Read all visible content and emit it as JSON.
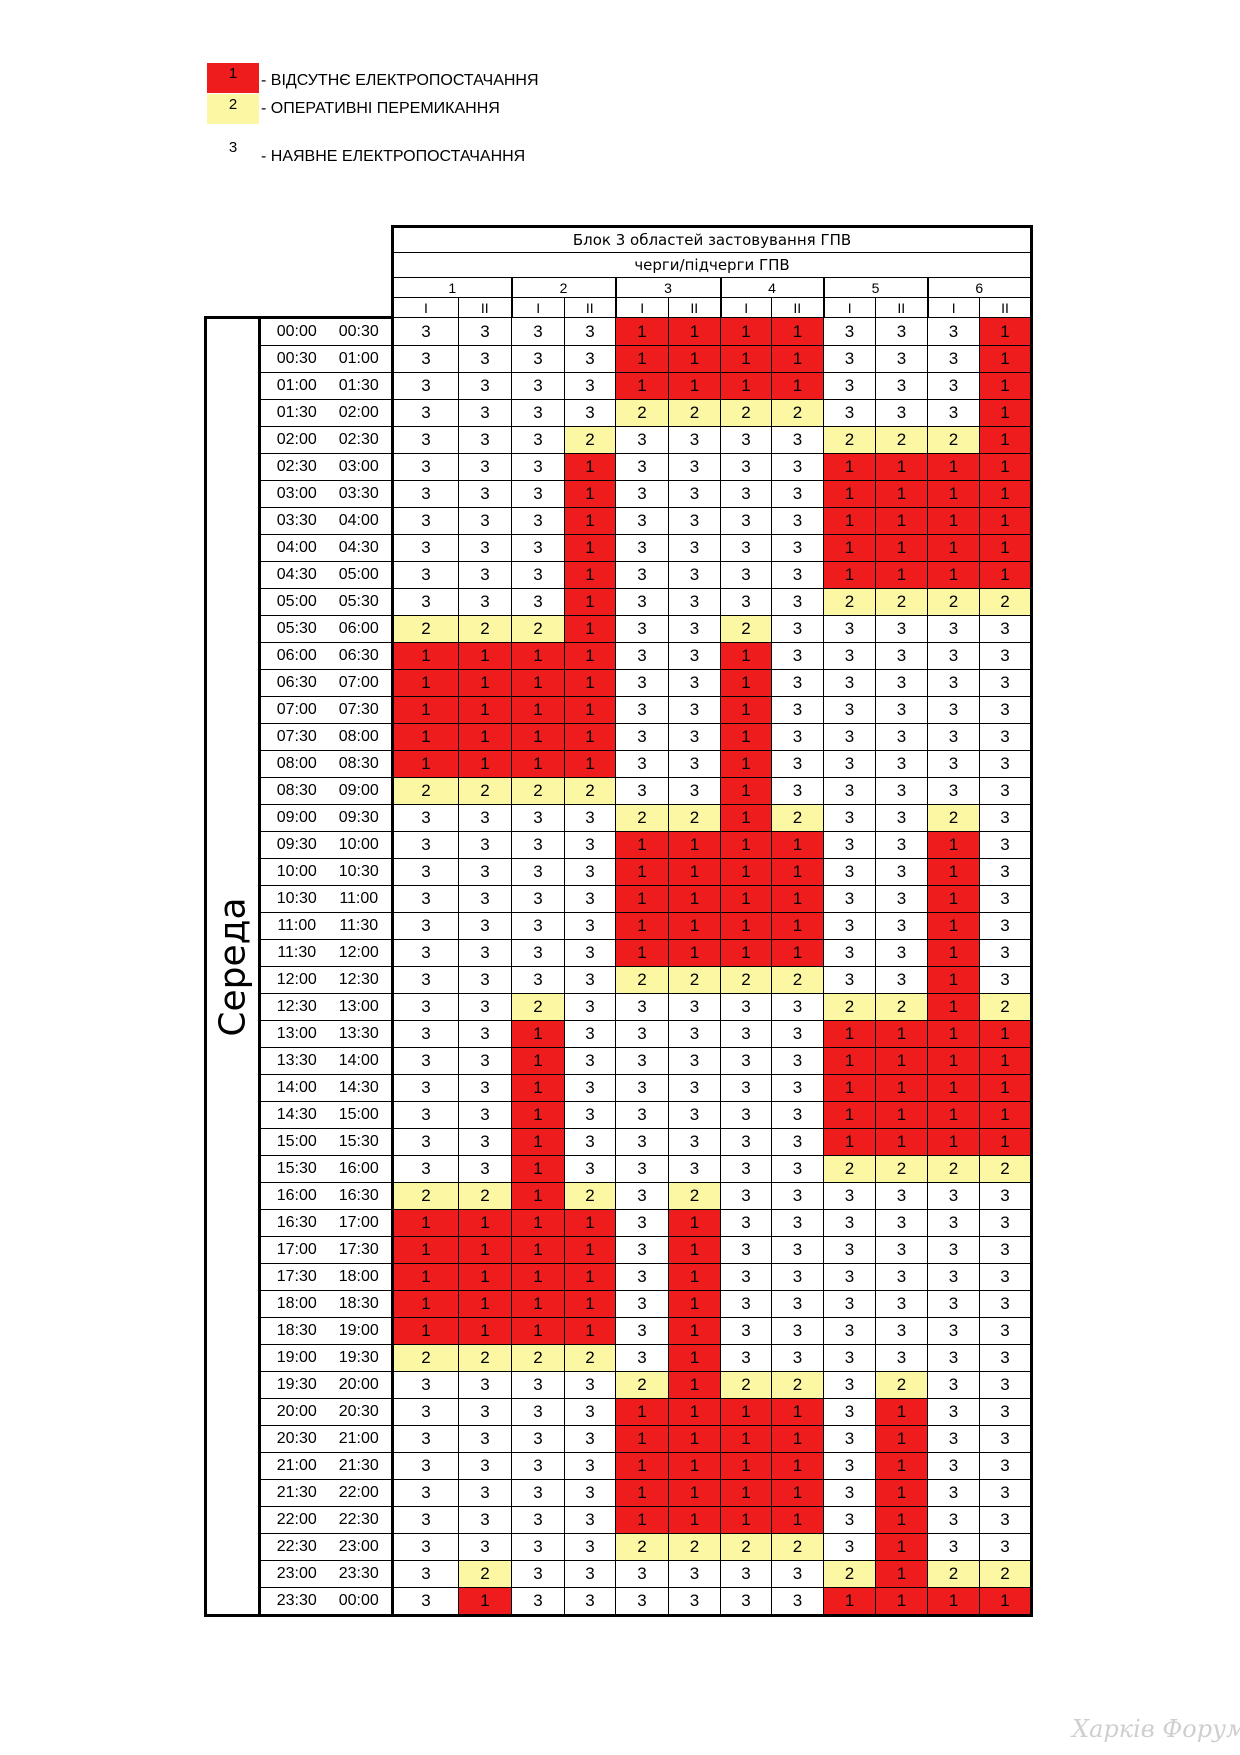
{
  "legend": [
    {
      "code": "1",
      "text": "- ВІДСУТНЄ ЕЛЕКТРОПОСТАЧАННЯ",
      "color": "#ee1c1c"
    },
    {
      "code": "2",
      "text": "- ОПЕРАТИВНІ ПЕРЕМИКАННЯ",
      "color": "#fbf7a2"
    },
    {
      "code": "3",
      "text": "- НАЯВНЕ ЕЛЕКТРОПОСТАЧАННЯ",
      "color": "#ffffff"
    }
  ],
  "table": {
    "title": "Блок 3 областей застовування ГПВ",
    "subtitle": "черги/підчерги ГПВ",
    "queues": [
      "1",
      "2",
      "3",
      "4",
      "5",
      "6"
    ],
    "subqueues": [
      "I",
      "II"
    ],
    "day": "Середа",
    "rows": [
      {
        "start": "00:00",
        "end": "00:30",
        "values": [
          "3",
          "3",
          "3",
          "3",
          "1",
          "1",
          "1",
          "1",
          "3",
          "3",
          "3",
          "1"
        ]
      },
      {
        "start": "00:30",
        "end": "01:00",
        "values": [
          "3",
          "3",
          "3",
          "3",
          "1",
          "1",
          "1",
          "1",
          "3",
          "3",
          "3",
          "1"
        ]
      },
      {
        "start": "01:00",
        "end": "01:30",
        "values": [
          "3",
          "3",
          "3",
          "3",
          "1",
          "1",
          "1",
          "1",
          "3",
          "3",
          "3",
          "1"
        ]
      },
      {
        "start": "01:30",
        "end": "02:00",
        "values": [
          "3",
          "3",
          "3",
          "3",
          "2",
          "2",
          "2",
          "2",
          "3",
          "3",
          "3",
          "1"
        ]
      },
      {
        "start": "02:00",
        "end": "02:30",
        "values": [
          "3",
          "3",
          "3",
          "2",
          "3",
          "3",
          "3",
          "3",
          "2",
          "2",
          "2",
          "1"
        ]
      },
      {
        "start": "02:30",
        "end": "03:00",
        "values": [
          "3",
          "3",
          "3",
          "1",
          "3",
          "3",
          "3",
          "3",
          "1",
          "1",
          "1",
          "1"
        ]
      },
      {
        "start": "03:00",
        "end": "03:30",
        "values": [
          "3",
          "3",
          "3",
          "1",
          "3",
          "3",
          "3",
          "3",
          "1",
          "1",
          "1",
          "1"
        ]
      },
      {
        "start": "03:30",
        "end": "04:00",
        "values": [
          "3",
          "3",
          "3",
          "1",
          "3",
          "3",
          "3",
          "3",
          "1",
          "1",
          "1",
          "1"
        ]
      },
      {
        "start": "04:00",
        "end": "04:30",
        "values": [
          "3",
          "3",
          "3",
          "1",
          "3",
          "3",
          "3",
          "3",
          "1",
          "1",
          "1",
          "1"
        ]
      },
      {
        "start": "04:30",
        "end": "05:00",
        "values": [
          "3",
          "3",
          "3",
          "1",
          "3",
          "3",
          "3",
          "3",
          "1",
          "1",
          "1",
          "1"
        ]
      },
      {
        "start": "05:00",
        "end": "05:30",
        "values": [
          "3",
          "3",
          "3",
          "1",
          "3",
          "3",
          "3",
          "3",
          "2",
          "2",
          "2",
          "2"
        ]
      },
      {
        "start": "05:30",
        "end": "06:00",
        "values": [
          "2",
          "2",
          "2",
          "1",
          "3",
          "3",
          "2",
          "3",
          "3",
          "3",
          "3",
          "3"
        ]
      },
      {
        "start": "06:00",
        "end": "06:30",
        "values": [
          "1",
          "1",
          "1",
          "1",
          "3",
          "3",
          "1",
          "3",
          "3",
          "3",
          "3",
          "3"
        ]
      },
      {
        "start": "06:30",
        "end": "07:00",
        "values": [
          "1",
          "1",
          "1",
          "1",
          "3",
          "3",
          "1",
          "3",
          "3",
          "3",
          "3",
          "3"
        ]
      },
      {
        "start": "07:00",
        "end": "07:30",
        "values": [
          "1",
          "1",
          "1",
          "1",
          "3",
          "3",
          "1",
          "3",
          "3",
          "3",
          "3",
          "3"
        ]
      },
      {
        "start": "07:30",
        "end": "08:00",
        "values": [
          "1",
          "1",
          "1",
          "1",
          "3",
          "3",
          "1",
          "3",
          "3",
          "3",
          "3",
          "3"
        ]
      },
      {
        "start": "08:00",
        "end": "08:30",
        "values": [
          "1",
          "1",
          "1",
          "1",
          "3",
          "3",
          "1",
          "3",
          "3",
          "3",
          "3",
          "3"
        ]
      },
      {
        "start": "08:30",
        "end": "09:00",
        "values": [
          "2",
          "2",
          "2",
          "2",
          "3",
          "3",
          "1",
          "3",
          "3",
          "3",
          "3",
          "3"
        ]
      },
      {
        "start": "09:00",
        "end": "09:30",
        "values": [
          "3",
          "3",
          "3",
          "3",
          "2",
          "2",
          "1",
          "2",
          "3",
          "3",
          "2",
          "3"
        ]
      },
      {
        "start": "09:30",
        "end": "10:00",
        "values": [
          "3",
          "3",
          "3",
          "3",
          "1",
          "1",
          "1",
          "1",
          "3",
          "3",
          "1",
          "3"
        ]
      },
      {
        "start": "10:00",
        "end": "10:30",
        "values": [
          "3",
          "3",
          "3",
          "3",
          "1",
          "1",
          "1",
          "1",
          "3",
          "3",
          "1",
          "3"
        ]
      },
      {
        "start": "10:30",
        "end": "11:00",
        "values": [
          "3",
          "3",
          "3",
          "3",
          "1",
          "1",
          "1",
          "1",
          "3",
          "3",
          "1",
          "3"
        ]
      },
      {
        "start": "11:00",
        "end": "11:30",
        "values": [
          "3",
          "3",
          "3",
          "3",
          "1",
          "1",
          "1",
          "1",
          "3",
          "3",
          "1",
          "3"
        ]
      },
      {
        "start": "11:30",
        "end": "12:00",
        "values": [
          "3",
          "3",
          "3",
          "3",
          "1",
          "1",
          "1",
          "1",
          "3",
          "3",
          "1",
          "3"
        ]
      },
      {
        "start": "12:00",
        "end": "12:30",
        "values": [
          "3",
          "3",
          "3",
          "3",
          "2",
          "2",
          "2",
          "2",
          "3",
          "3",
          "1",
          "3"
        ]
      },
      {
        "start": "12:30",
        "end": "13:00",
        "values": [
          "3",
          "3",
          "2",
          "3",
          "3",
          "3",
          "3",
          "3",
          "2",
          "2",
          "1",
          "2"
        ]
      },
      {
        "start": "13:00",
        "end": "13:30",
        "values": [
          "3",
          "3",
          "1",
          "3",
          "3",
          "3",
          "3",
          "3",
          "1",
          "1",
          "1",
          "1"
        ]
      },
      {
        "start": "13:30",
        "end": "14:00",
        "values": [
          "3",
          "3",
          "1",
          "3",
          "3",
          "3",
          "3",
          "3",
          "1",
          "1",
          "1",
          "1"
        ]
      },
      {
        "start": "14:00",
        "end": "14:30",
        "values": [
          "3",
          "3",
          "1",
          "3",
          "3",
          "3",
          "3",
          "3",
          "1",
          "1",
          "1",
          "1"
        ]
      },
      {
        "start": "14:30",
        "end": "15:00",
        "values": [
          "3",
          "3",
          "1",
          "3",
          "3",
          "3",
          "3",
          "3",
          "1",
          "1",
          "1",
          "1"
        ]
      },
      {
        "start": "15:00",
        "end": "15:30",
        "values": [
          "3",
          "3",
          "1",
          "3",
          "3",
          "3",
          "3",
          "3",
          "1",
          "1",
          "1",
          "1"
        ]
      },
      {
        "start": "15:30",
        "end": "16:00",
        "values": [
          "3",
          "3",
          "1",
          "3",
          "3",
          "3",
          "3",
          "3",
          "2",
          "2",
          "2",
          "2"
        ]
      },
      {
        "start": "16:00",
        "end": "16:30",
        "values": [
          "2",
          "2",
          "1",
          "2",
          "3",
          "2",
          "3",
          "3",
          "3",
          "3",
          "3",
          "3"
        ]
      },
      {
        "start": "16:30",
        "end": "17:00",
        "values": [
          "1",
          "1",
          "1",
          "1",
          "3",
          "1",
          "3",
          "3",
          "3",
          "3",
          "3",
          "3"
        ]
      },
      {
        "start": "17:00",
        "end": "17:30",
        "values": [
          "1",
          "1",
          "1",
          "1",
          "3",
          "1",
          "3",
          "3",
          "3",
          "3",
          "3",
          "3"
        ]
      },
      {
        "start": "17:30",
        "end": "18:00",
        "values": [
          "1",
          "1",
          "1",
          "1",
          "3",
          "1",
          "3",
          "3",
          "3",
          "3",
          "3",
          "3"
        ]
      },
      {
        "start": "18:00",
        "end": "18:30",
        "values": [
          "1",
          "1",
          "1",
          "1",
          "3",
          "1",
          "3",
          "3",
          "3",
          "3",
          "3",
          "3"
        ]
      },
      {
        "start": "18:30",
        "end": "19:00",
        "values": [
          "1",
          "1",
          "1",
          "1",
          "3",
          "1",
          "3",
          "3",
          "3",
          "3",
          "3",
          "3"
        ]
      },
      {
        "start": "19:00",
        "end": "19:30",
        "values": [
          "2",
          "2",
          "2",
          "2",
          "3",
          "1",
          "3",
          "3",
          "3",
          "3",
          "3",
          "3"
        ]
      },
      {
        "start": "19:30",
        "end": "20:00",
        "values": [
          "3",
          "3",
          "3",
          "3",
          "2",
          "1",
          "2",
          "2",
          "3",
          "2",
          "3",
          "3"
        ]
      },
      {
        "start": "20:00",
        "end": "20:30",
        "values": [
          "3",
          "3",
          "3",
          "3",
          "1",
          "1",
          "1",
          "1",
          "3",
          "1",
          "3",
          "3"
        ]
      },
      {
        "start": "20:30",
        "end": "21:00",
        "values": [
          "3",
          "3",
          "3",
          "3",
          "1",
          "1",
          "1",
          "1",
          "3",
          "1",
          "3",
          "3"
        ]
      },
      {
        "start": "21:00",
        "end": "21:30",
        "values": [
          "3",
          "3",
          "3",
          "3",
          "1",
          "1",
          "1",
          "1",
          "3",
          "1",
          "3",
          "3"
        ]
      },
      {
        "start": "21:30",
        "end": "22:00",
        "values": [
          "3",
          "3",
          "3",
          "3",
          "1",
          "1",
          "1",
          "1",
          "3",
          "1",
          "3",
          "3"
        ]
      },
      {
        "start": "22:00",
        "end": "22:30",
        "values": [
          "3",
          "3",
          "3",
          "3",
          "1",
          "1",
          "1",
          "1",
          "3",
          "1",
          "3",
          "3"
        ]
      },
      {
        "start": "22:30",
        "end": "23:00",
        "values": [
          "3",
          "3",
          "3",
          "3",
          "2",
          "2",
          "2",
          "2",
          "3",
          "1",
          "3",
          "3"
        ]
      },
      {
        "start": "23:00",
        "end": "23:30",
        "values": [
          "3",
          "2",
          "3",
          "3",
          "3",
          "3",
          "3",
          "3",
          "2",
          "1",
          "2",
          "2"
        ]
      },
      {
        "start": "23:30",
        "end": "00:00",
        "values": [
          "3",
          "1",
          "3",
          "3",
          "3",
          "3",
          "3",
          "3",
          "1",
          "1",
          "1",
          "1"
        ]
      }
    ]
  },
  "watermark": "Харків Форум"
}
